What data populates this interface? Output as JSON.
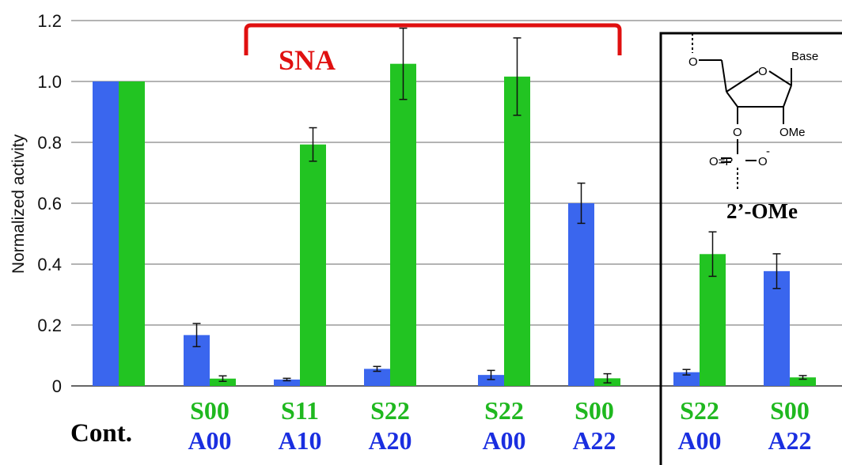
{
  "chart_data": {
    "type": "bar",
    "ylabel": "Normalized activity",
    "ylim": [
      0,
      1.2
    ],
    "yticks": [
      "0",
      "0.2",
      "0.4",
      "0.6",
      "0.8",
      "1.0",
      "1.2"
    ],
    "colors": {
      "blue": "#3a66ee",
      "green": "#22c422",
      "bracket": "#e01010",
      "label_green": "#1fb81f",
      "label_blue": "#1a2ee0"
    },
    "groups": [
      {
        "id": "cont",
        "label": "Cont.",
        "s_label": "",
        "a_label": "",
        "blue": 1.0,
        "blue_err": 0,
        "green": 1.0,
        "green_err": 0
      },
      {
        "id": "s00a00",
        "label": "",
        "s_label": "S00",
        "a_label": "A00",
        "blue": 0.167,
        "blue_err": 0.038,
        "green": 0.024,
        "green_err": 0.009
      },
      {
        "id": "s11a10",
        "label": "",
        "s_label": "S11",
        "a_label": "A10",
        "blue": 0.021,
        "blue_err": 0.004,
        "green": 0.793,
        "green_err": 0.055
      },
      {
        "id": "s22a20",
        "label": "",
        "s_label": "S22",
        "a_label": "A20",
        "blue": 0.056,
        "blue_err": 0.008,
        "green": 1.058,
        "green_err": 0.117
      },
      {
        "id": "s22a00",
        "label": "",
        "s_label": "S22",
        "a_label": "A00",
        "blue": 0.036,
        "blue_err": 0.015,
        "green": 1.016,
        "green_err": 0.127
      },
      {
        "id": "s00a22",
        "label": "",
        "s_label": "S00",
        "a_label": "A22",
        "blue": 0.6,
        "blue_err": 0.066,
        "green": 0.025,
        "green_err": 0.015
      },
      {
        "id": "ome-s22a00",
        "label": "",
        "s_label": "S22",
        "a_label": "A00",
        "blue": 0.045,
        "blue_err": 0.009,
        "green": 0.433,
        "green_err": 0.073
      },
      {
        "id": "ome-s00a22",
        "label": "",
        "s_label": "S00",
        "a_label": "A22",
        "blue": 0.377,
        "blue_err": 0.057,
        "green": 0.028,
        "green_err": 0.006
      }
    ],
    "annotations": {
      "bracket_label": "SNA",
      "inset_label": "2’-OMe",
      "structure": {
        "base": "Base",
        "ome": "OMe",
        "o_ring": "O",
        "o5": "O",
        "o3": "O",
        "phosphate_left": "O=P",
        "phosphate_right": "O",
        "minus": "-"
      }
    }
  }
}
